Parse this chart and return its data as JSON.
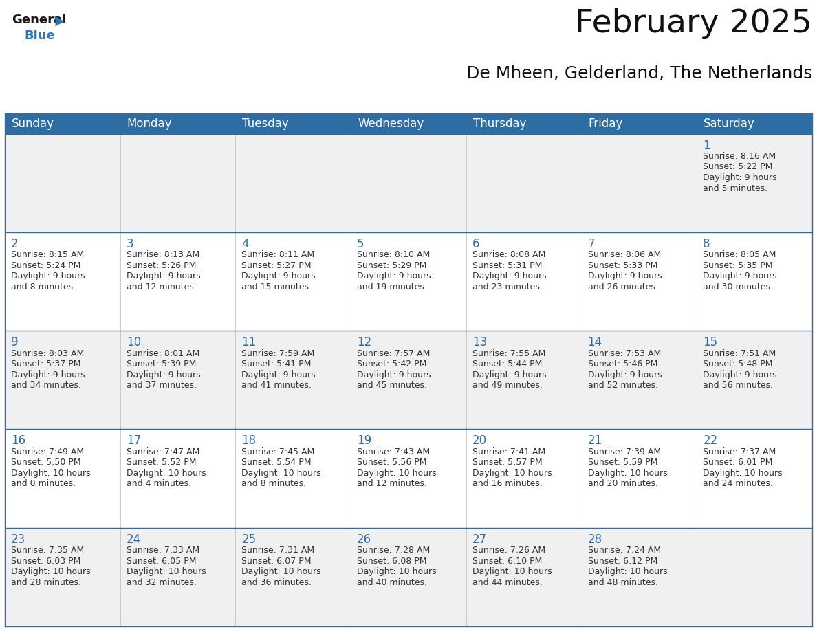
{
  "title": "February 2025",
  "subtitle": "De Mheen, Gelderland, The Netherlands",
  "header_color": "#2E6DA4",
  "header_text_color": "#FFFFFF",
  "cell_bg_even": "#F0F0F0",
  "cell_bg_odd": "#FFFFFF",
  "day_text_color": "#2E6DA4",
  "info_text_color": "#333333",
  "border_color": "#2E6DA4",
  "days_of_week": [
    "Sunday",
    "Monday",
    "Tuesday",
    "Wednesday",
    "Thursday",
    "Friday",
    "Saturday"
  ],
  "weeks": [
    [
      null,
      null,
      null,
      null,
      null,
      null,
      {
        "day": "1",
        "sunrise": "8:16 AM",
        "sunset": "5:22 PM",
        "daylight1": "Daylight: 9 hours",
        "daylight2": "and 5 minutes."
      }
    ],
    [
      {
        "day": "2",
        "sunrise": "8:15 AM",
        "sunset": "5:24 PM",
        "daylight1": "Daylight: 9 hours",
        "daylight2": "and 8 minutes."
      },
      {
        "day": "3",
        "sunrise": "8:13 AM",
        "sunset": "5:26 PM",
        "daylight1": "Daylight: 9 hours",
        "daylight2": "and 12 minutes."
      },
      {
        "day": "4",
        "sunrise": "8:11 AM",
        "sunset": "5:27 PM",
        "daylight1": "Daylight: 9 hours",
        "daylight2": "and 15 minutes."
      },
      {
        "day": "5",
        "sunrise": "8:10 AM",
        "sunset": "5:29 PM",
        "daylight1": "Daylight: 9 hours",
        "daylight2": "and 19 minutes."
      },
      {
        "day": "6",
        "sunrise": "8:08 AM",
        "sunset": "5:31 PM",
        "daylight1": "Daylight: 9 hours",
        "daylight2": "and 23 minutes."
      },
      {
        "day": "7",
        "sunrise": "8:06 AM",
        "sunset": "5:33 PM",
        "daylight1": "Daylight: 9 hours",
        "daylight2": "and 26 minutes."
      },
      {
        "day": "8",
        "sunrise": "8:05 AM",
        "sunset": "5:35 PM",
        "daylight1": "Daylight: 9 hours",
        "daylight2": "and 30 minutes."
      }
    ],
    [
      {
        "day": "9",
        "sunrise": "8:03 AM",
        "sunset": "5:37 PM",
        "daylight1": "Daylight: 9 hours",
        "daylight2": "and 34 minutes."
      },
      {
        "day": "10",
        "sunrise": "8:01 AM",
        "sunset": "5:39 PM",
        "daylight1": "Daylight: 9 hours",
        "daylight2": "and 37 minutes."
      },
      {
        "day": "11",
        "sunrise": "7:59 AM",
        "sunset": "5:41 PM",
        "daylight1": "Daylight: 9 hours",
        "daylight2": "and 41 minutes."
      },
      {
        "day": "12",
        "sunrise": "7:57 AM",
        "sunset": "5:42 PM",
        "daylight1": "Daylight: 9 hours",
        "daylight2": "and 45 minutes."
      },
      {
        "day": "13",
        "sunrise": "7:55 AM",
        "sunset": "5:44 PM",
        "daylight1": "Daylight: 9 hours",
        "daylight2": "and 49 minutes."
      },
      {
        "day": "14",
        "sunrise": "7:53 AM",
        "sunset": "5:46 PM",
        "daylight1": "Daylight: 9 hours",
        "daylight2": "and 52 minutes."
      },
      {
        "day": "15",
        "sunrise": "7:51 AM",
        "sunset": "5:48 PM",
        "daylight1": "Daylight: 9 hours",
        "daylight2": "and 56 minutes."
      }
    ],
    [
      {
        "day": "16",
        "sunrise": "7:49 AM",
        "sunset": "5:50 PM",
        "daylight1": "Daylight: 10 hours",
        "daylight2": "and 0 minutes."
      },
      {
        "day": "17",
        "sunrise": "7:47 AM",
        "sunset": "5:52 PM",
        "daylight1": "Daylight: 10 hours",
        "daylight2": "and 4 minutes."
      },
      {
        "day": "18",
        "sunrise": "7:45 AM",
        "sunset": "5:54 PM",
        "daylight1": "Daylight: 10 hours",
        "daylight2": "and 8 minutes."
      },
      {
        "day": "19",
        "sunrise": "7:43 AM",
        "sunset": "5:56 PM",
        "daylight1": "Daylight: 10 hours",
        "daylight2": "and 12 minutes."
      },
      {
        "day": "20",
        "sunrise": "7:41 AM",
        "sunset": "5:57 PM",
        "daylight1": "Daylight: 10 hours",
        "daylight2": "and 16 minutes."
      },
      {
        "day": "21",
        "sunrise": "7:39 AM",
        "sunset": "5:59 PM",
        "daylight1": "Daylight: 10 hours",
        "daylight2": "and 20 minutes."
      },
      {
        "day": "22",
        "sunrise": "7:37 AM",
        "sunset": "6:01 PM",
        "daylight1": "Daylight: 10 hours",
        "daylight2": "and 24 minutes."
      }
    ],
    [
      {
        "day": "23",
        "sunrise": "7:35 AM",
        "sunset": "6:03 PM",
        "daylight1": "Daylight: 10 hours",
        "daylight2": "and 28 minutes."
      },
      {
        "day": "24",
        "sunrise": "7:33 AM",
        "sunset": "6:05 PM",
        "daylight1": "Daylight: 10 hours",
        "daylight2": "and 32 minutes."
      },
      {
        "day": "25",
        "sunrise": "7:31 AM",
        "sunset": "6:07 PM",
        "daylight1": "Daylight: 10 hours",
        "daylight2": "and 36 minutes."
      },
      {
        "day": "26",
        "sunrise": "7:28 AM",
        "sunset": "6:08 PM",
        "daylight1": "Daylight: 10 hours",
        "daylight2": "and 40 minutes."
      },
      {
        "day": "27",
        "sunrise": "7:26 AM",
        "sunset": "6:10 PM",
        "daylight1": "Daylight: 10 hours",
        "daylight2": "and 44 minutes."
      },
      {
        "day": "28",
        "sunrise": "7:24 AM",
        "sunset": "6:12 PM",
        "daylight1": "Daylight: 10 hours",
        "daylight2": "and 48 minutes."
      },
      null
    ]
  ],
  "logo_general_color": "#1a1a1a",
  "logo_blue_color": "#2E75B6",
  "title_fontsize": 34,
  "subtitle_fontsize": 18,
  "header_fontsize": 12,
  "day_num_fontsize": 12,
  "cell_text_fontsize": 9,
  "fig_width": 11.88,
  "fig_height": 9.18,
  "dpi": 100
}
